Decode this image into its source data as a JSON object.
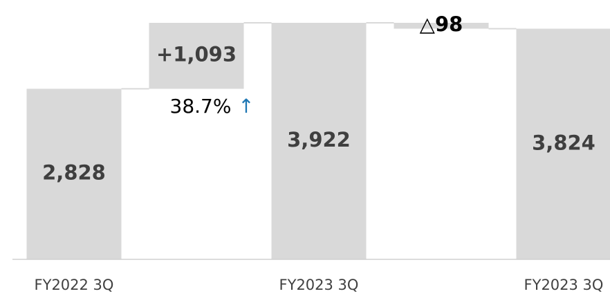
{
  "chart_data": {
    "type": "waterfall",
    "categories": [
      "FY2022 3Q",
      null,
      "FY2023 3Q",
      null,
      "FY2023 3Q"
    ],
    "measure": [
      "absolute",
      "relative",
      "absolute",
      "relative",
      "absolute"
    ],
    "values": [
      2828,
      1093,
      3922,
      -98,
      3824
    ],
    "value_labels": [
      "2,828",
      "+1,093",
      "3,922",
      "△98",
      "3,824"
    ],
    "color": "#d9d9d9",
    "ylim": [
      0,
      4300
    ],
    "annotations": [
      {
        "text": "38.7%",
        "color": "#000000"
      },
      {
        "text": "↑",
        "color": "#1f77b4"
      }
    ]
  }
}
